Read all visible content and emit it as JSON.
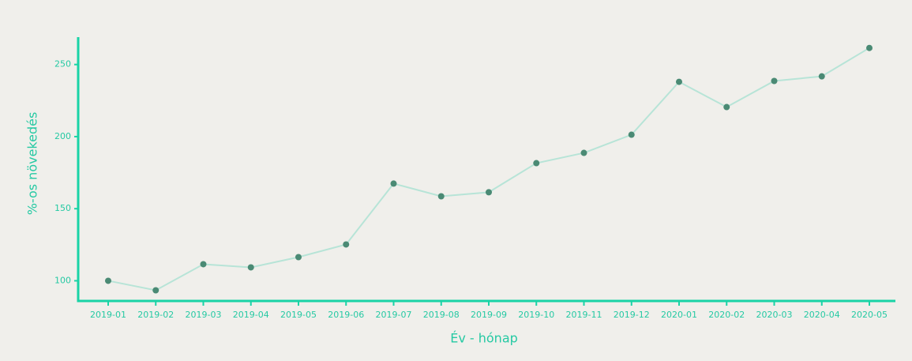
{
  "chart_data": {
    "type": "line",
    "x_label": "Év - hónap",
    "y_label": "%-os növekedés",
    "categories": [
      "2019-01",
      "2019-02",
      "2019-03",
      "2019-04",
      "2019-05",
      "2019-06",
      "2019-07",
      "2019-08",
      "2019-09",
      "2019-10",
      "2019-11",
      "2019-12",
      "2020-01",
      "2020-02",
      "2020-03",
      "2020-04",
      "2020-05"
    ],
    "series": [
      {
        "color": "#4a8a74",
        "line_color": "#b7e4d7",
        "values": [
          100,
          93.4,
          111.5,
          109.3,
          116.4,
          125.2,
          167.4,
          158.6,
          161.4,
          181.6,
          188.7,
          201.3,
          238,
          220.5,
          238.6,
          241.8,
          261.5
        ]
      }
    ],
    "ylim": [
      86,
      269
    ],
    "yticks": [
      100,
      150,
      200,
      250
    ]
  }
}
